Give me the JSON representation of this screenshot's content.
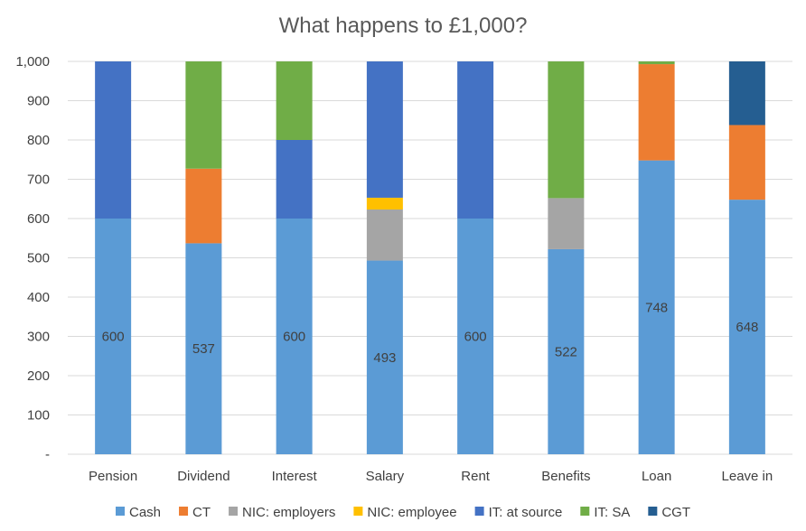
{
  "chart_data": {
    "type": "bar",
    "stacked": true,
    "title": "What happens to £1,000?",
    "xlabel": "",
    "ylabel": "",
    "ylim": [
      0,
      1000
    ],
    "yticks": [
      0,
      100,
      200,
      300,
      400,
      500,
      600,
      700,
      800,
      900,
      1000
    ],
    "ytick_labels": [
      "-",
      "100",
      "200",
      "300",
      "400",
      "500",
      "600",
      "700",
      "800",
      "900",
      "1,000"
    ],
    "grid": true,
    "legend_position": "bottom",
    "categories": [
      "Pension",
      "Dividend",
      "Interest",
      "Salary",
      "Rent",
      "Benefits",
      "Loan",
      "Leave in"
    ],
    "series": [
      {
        "name": "Cash",
        "color": "#5b9bd5",
        "values": [
          600,
          537,
          600,
          493,
          600,
          522,
          748,
          648
        ],
        "show_labels": true
      },
      {
        "name": "CT",
        "color": "#ed7d31",
        "values": [
          0,
          190,
          0,
          0,
          0,
          0,
          245,
          190
        ]
      },
      {
        "name": "NIC: employers",
        "color": "#a5a5a5",
        "values": [
          0,
          0,
          0,
          130,
          0,
          130,
          0,
          0
        ]
      },
      {
        "name": "NIC: employee",
        "color": "#ffc000",
        "values": [
          0,
          0,
          0,
          30,
          0,
          0,
          0,
          0
        ]
      },
      {
        "name": "IT: at source",
        "color": "#4472c4",
        "values": [
          400,
          0,
          200,
          347,
          400,
          0,
          0,
          0
        ]
      },
      {
        "name": "IT: SA",
        "color": "#70ad47",
        "values": [
          0,
          273,
          200,
          0,
          0,
          348,
          7,
          0
        ]
      },
      {
        "name": "CGT",
        "color": "#255e91",
        "values": [
          0,
          0,
          0,
          0,
          0,
          0,
          0,
          162
        ]
      }
    ]
  }
}
